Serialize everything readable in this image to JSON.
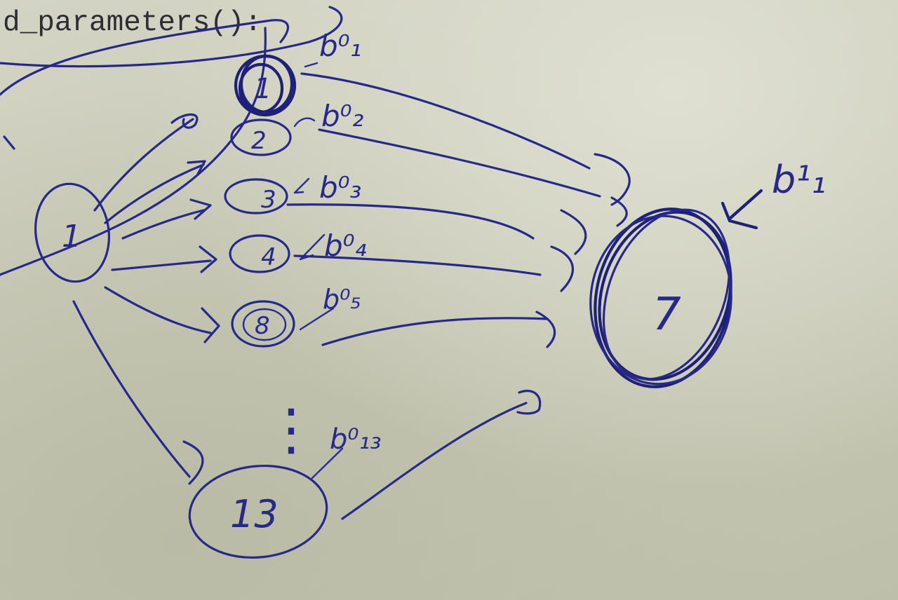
{
  "printed_text": "d_parameters():",
  "ink_color": "#27288a",
  "paper_color": "#cfd0bf",
  "input_node": {
    "label": "1"
  },
  "hidden_nodes": [
    {
      "label": "1",
      "bias_label": "b⁰₁"
    },
    {
      "label": "2",
      "bias_label": "b⁰₂"
    },
    {
      "label": "3",
      "bias_label": "b⁰₃"
    },
    {
      "label": "4",
      "bias_label": "b⁰₄"
    },
    {
      "label": "8",
      "bias_label": "b⁰₅"
    },
    {
      "label": "13",
      "bias_label": "b⁰₁₃"
    }
  ],
  "output_node": {
    "label": "7",
    "bias_label": "b¹₁"
  },
  "ellipsis_mark": "⋮"
}
